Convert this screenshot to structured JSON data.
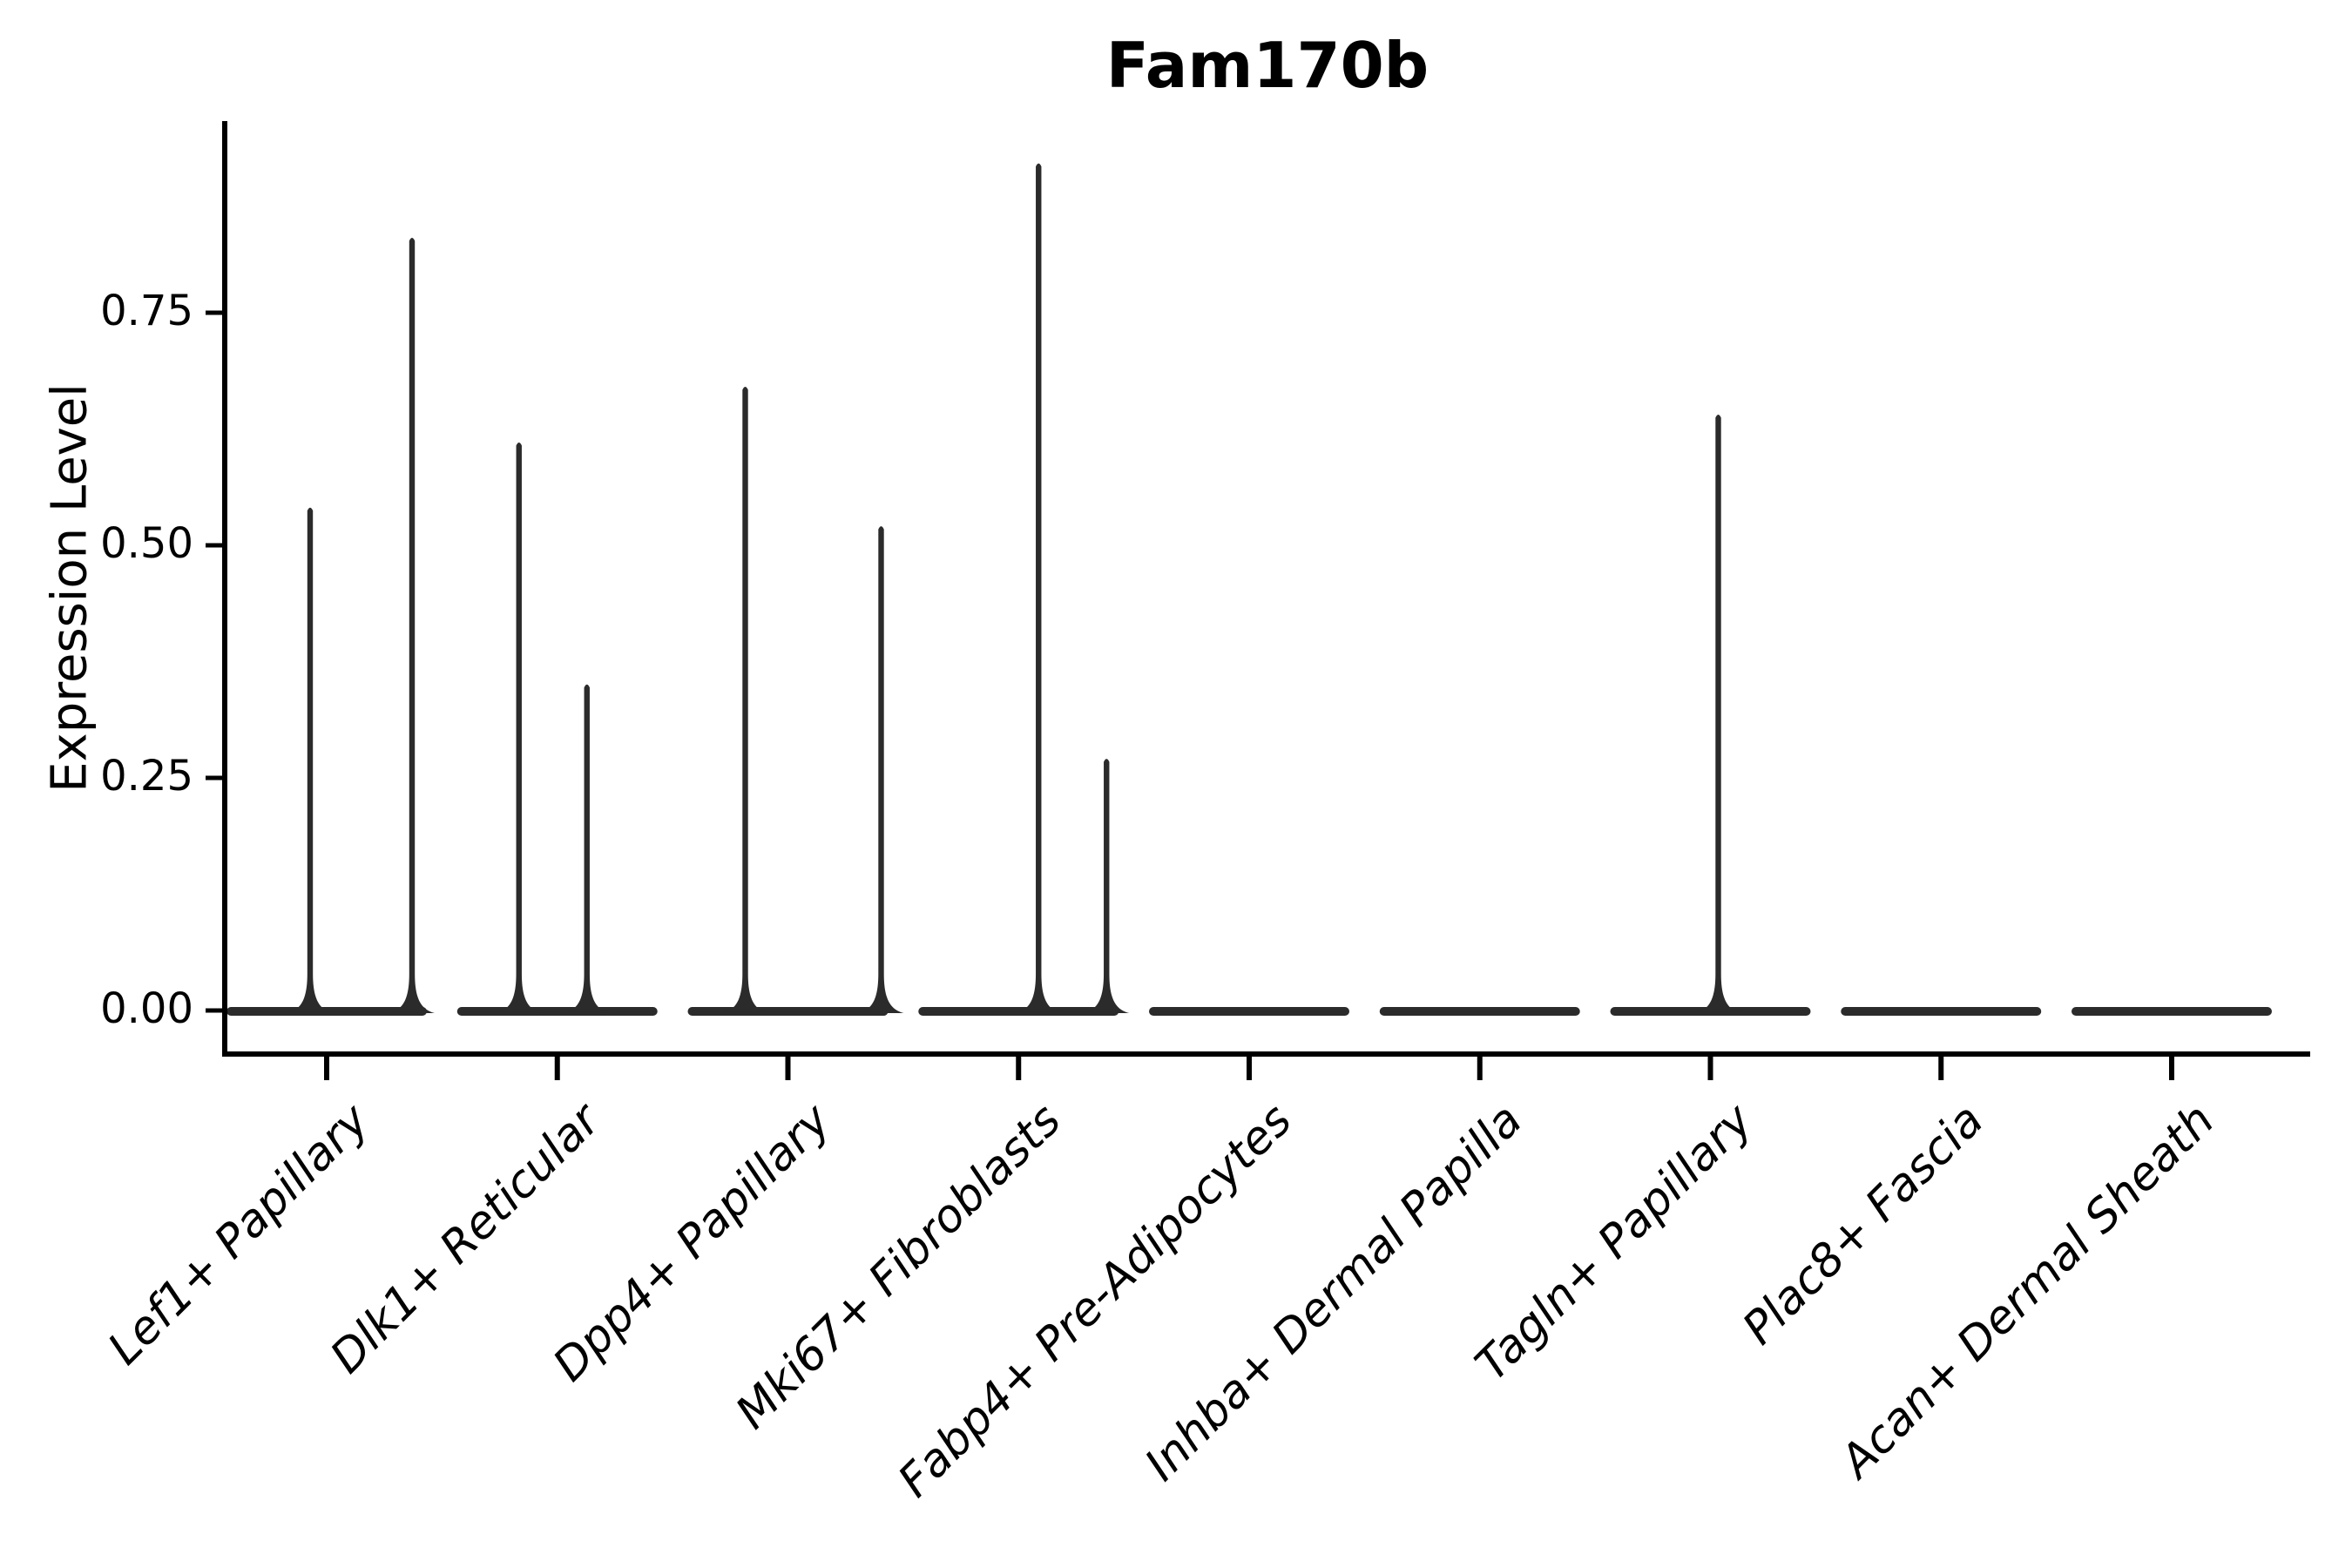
{
  "chart_data": {
    "type": "violin",
    "title": "Fam170b",
    "xlabel": "",
    "ylabel": "Expression Level",
    "ylim": [
      0,
      0.956
    ],
    "grid": false,
    "legend": "none",
    "yticks": [
      {
        "value": 0.0,
        "label": "0.00"
      },
      {
        "value": 0.25,
        "label": "0.25"
      },
      {
        "value": 0.5,
        "label": "0.50"
      },
      {
        "value": 0.75,
        "label": "0.75"
      }
    ],
    "categories": [
      "Lef1+ Papillary",
      "Dlk1+ Reticular",
      "Dpp4+ Papillary",
      "Mki67+ Fibroblasts",
      "Fabp4+ Pre-Adipocytes",
      "Inhba+ Dermal Papilla",
      "Tagln+ Papillary",
      "Plac8+ Fascia",
      "Acan+ Dermal Sheath"
    ],
    "violins": [
      {
        "category": "Lef1+ Papillary",
        "baseline_value": 0.0,
        "spikes": [
          {
            "dx": -19,
            "value": 0.54
          },
          {
            "dx": 98,
            "value": 0.83
          }
        ]
      },
      {
        "category": "Dlk1+ Reticular",
        "baseline_value": 0.0,
        "spikes": [
          {
            "dx": -44,
            "value": 0.61
          },
          {
            "dx": 34,
            "value": 0.35
          }
        ]
      },
      {
        "category": "Dpp4+ Papillary",
        "baseline_value": 0.0,
        "spikes": [
          {
            "dx": -49,
            "value": 0.67
          },
          {
            "dx": 107,
            "value": 0.52
          }
        ]
      },
      {
        "category": "Mki67+ Fibroblasts",
        "baseline_value": 0.0,
        "spikes": [
          {
            "dx": 23,
            "value": 0.91
          },
          {
            "dx": 101,
            "value": 0.27
          }
        ]
      },
      {
        "category": "Fabp4+ Pre-Adipocytes",
        "baseline_value": 0.0,
        "spikes": []
      },
      {
        "category": "Inhba+ Dermal Papilla",
        "baseline_value": 0.0,
        "spikes": []
      },
      {
        "category": "Tagln+ Papillary",
        "baseline_value": 0.0,
        "spikes": [
          {
            "dx": 9,
            "value": 0.64
          }
        ]
      },
      {
        "category": "Plac8+ Fascia",
        "baseline_value": 0.0,
        "spikes": []
      },
      {
        "category": "Acan+ Dermal Sheath",
        "baseline_value": 0.0,
        "spikes": []
      }
    ],
    "colors": {
      "violin": "#2b2b2b",
      "axis": "#000000",
      "text": "#000000",
      "background": "#ffffff"
    }
  }
}
